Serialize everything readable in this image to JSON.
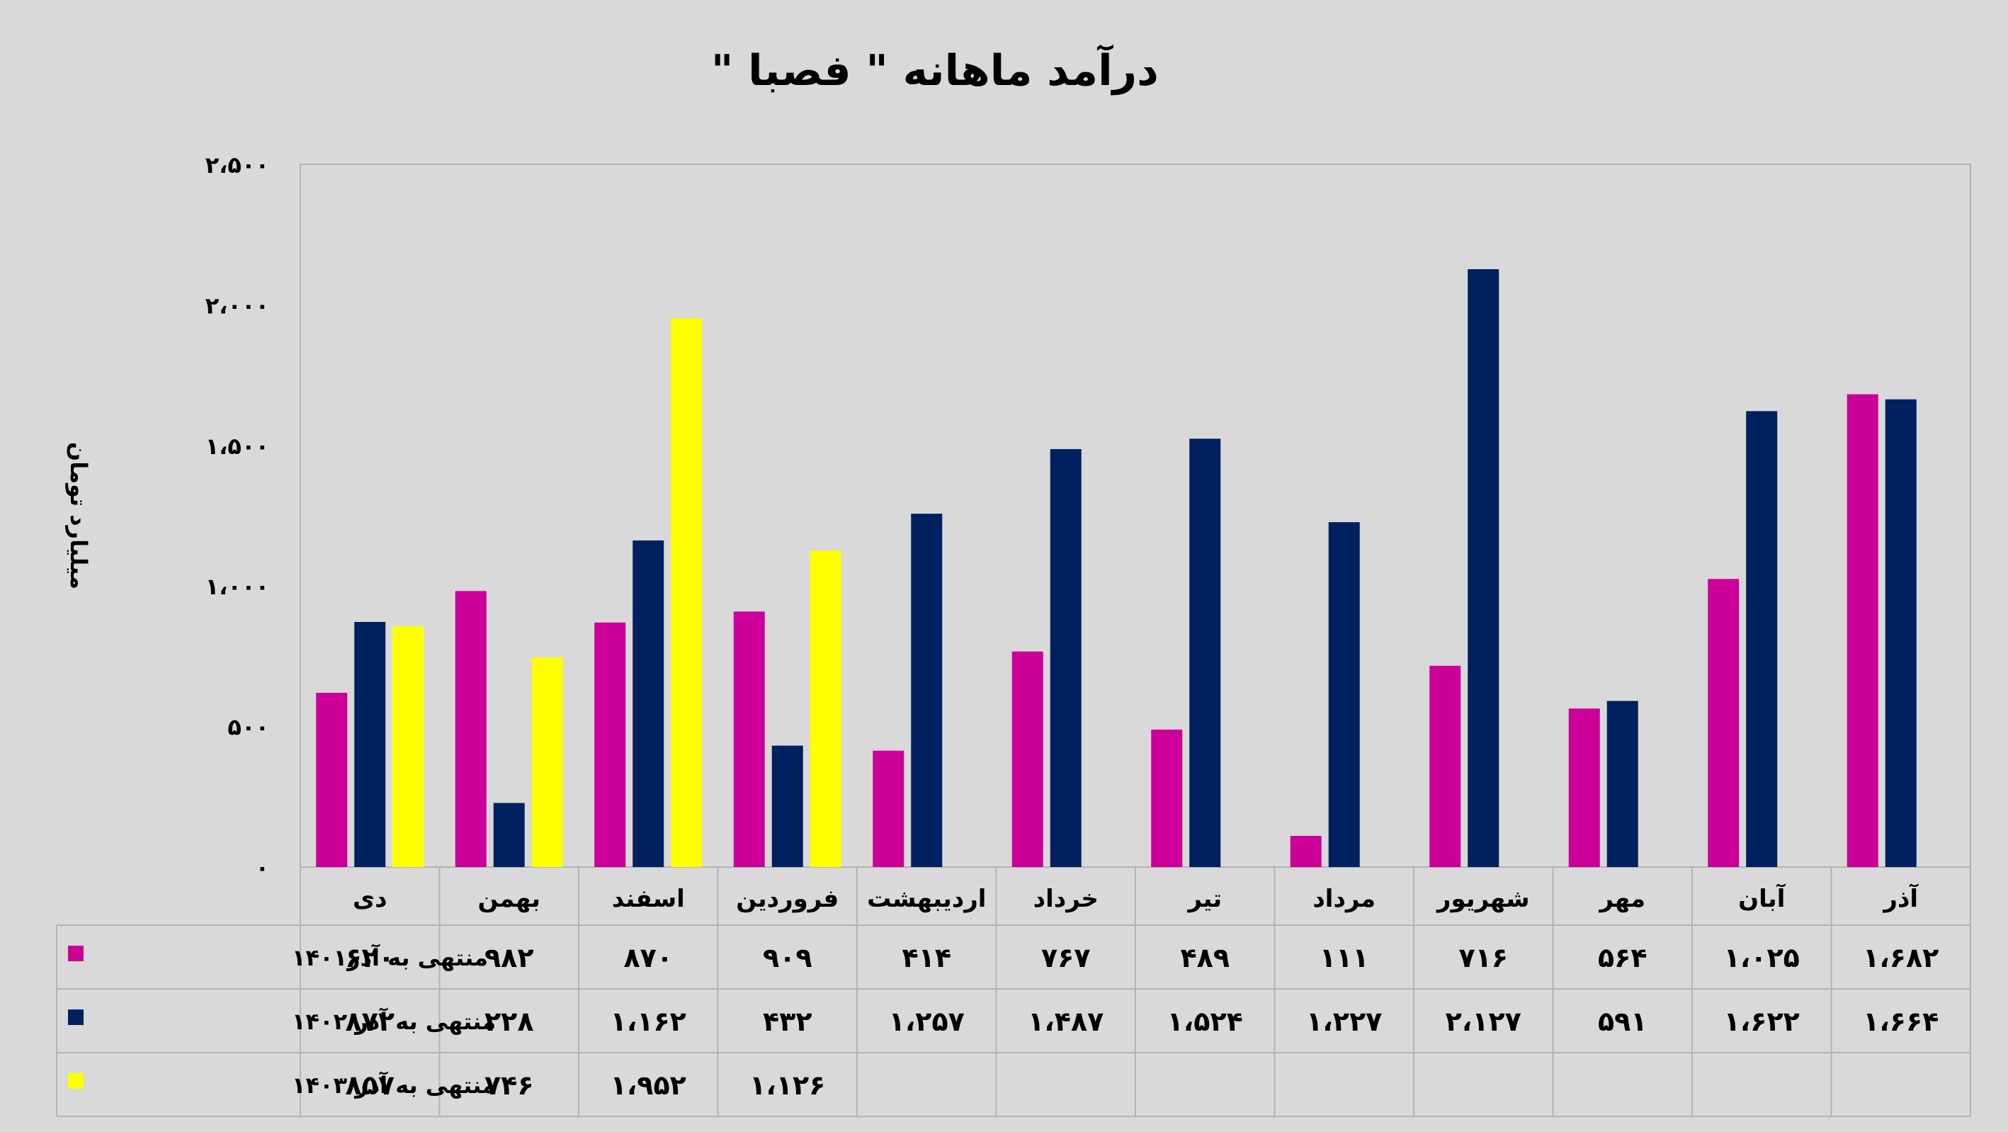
{
  "title": "درآمد ماهانه \" فصبا \"",
  "chart_data": {
    "type": "bar",
    "title": "درآمد ماهانه \" فصبا \"",
    "ylabel": "میلیارد تومان",
    "xlabel": "",
    "ylim": [
      0,
      2500
    ],
    "yticks": [
      0,
      500,
      1000,
      1500,
      2000,
      2500
    ],
    "ytick_labels": [
      "۰",
      "۵۰۰",
      "۱،۰۰۰",
      "۱،۵۰۰",
      "۲،۰۰۰",
      "۲،۵۰۰"
    ],
    "grid": false,
    "categories": [
      "دی",
      "بهمن",
      "اسفند",
      "فروردین",
      "اردیبهشت",
      "خرداد",
      "تیر",
      "مرداد",
      "شهریور",
      "مهر",
      "آبان",
      "آذر"
    ],
    "series": [
      {
        "name": "منتهی به آذر۱۴۰۱",
        "color": "#cc0099",
        "values": [
          620,
          982,
          870,
          909,
          414,
          767,
          489,
          111,
          716,
          564,
          1025,
          1682
        ],
        "labels": [
          "۶۲۰",
          "۹۸۲",
          "۸۷۰",
          "۹۰۹",
          "۴۱۴",
          "۷۶۷",
          "۴۸۹",
          "۱۱۱",
          "۷۱۶",
          "۵۶۴",
          "۱،۰۲۵",
          "۱،۶۸۲"
        ]
      },
      {
        "name": "منتهی به آذر ۱۴۰۲",
        "color": "#002060",
        "values": [
          872,
          228,
          1162,
          432,
          1257,
          1487,
          1524,
          1227,
          2127,
          591,
          1622,
          1664
        ],
        "labels": [
          "۸۷۲",
          "۲۲۸",
          "۱،۱۶۲",
          "۴۳۲",
          "۱،۲۵۷",
          "۱،۴۸۷",
          "۱،۵۲۴",
          "۱،۲۲۷",
          "۲،۱۲۷",
          "۵۹۱",
          "۱،۶۲۲",
          "۱،۶۶۴"
        ]
      },
      {
        "name": "منتهی به آذر ۱۴۰۳",
        "color": "#ffff00",
        "values": [
          857,
          746,
          1952,
          1126,
          null,
          null,
          null,
          null,
          null,
          null,
          null,
          null
        ],
        "labels": [
          "۸۵۷",
          "۷۴۶",
          "۱،۹۵۲",
          "۱،۱۲۶",
          "",
          "",
          "",
          "",
          "",
          "",
          "",
          ""
        ]
      }
    ]
  }
}
